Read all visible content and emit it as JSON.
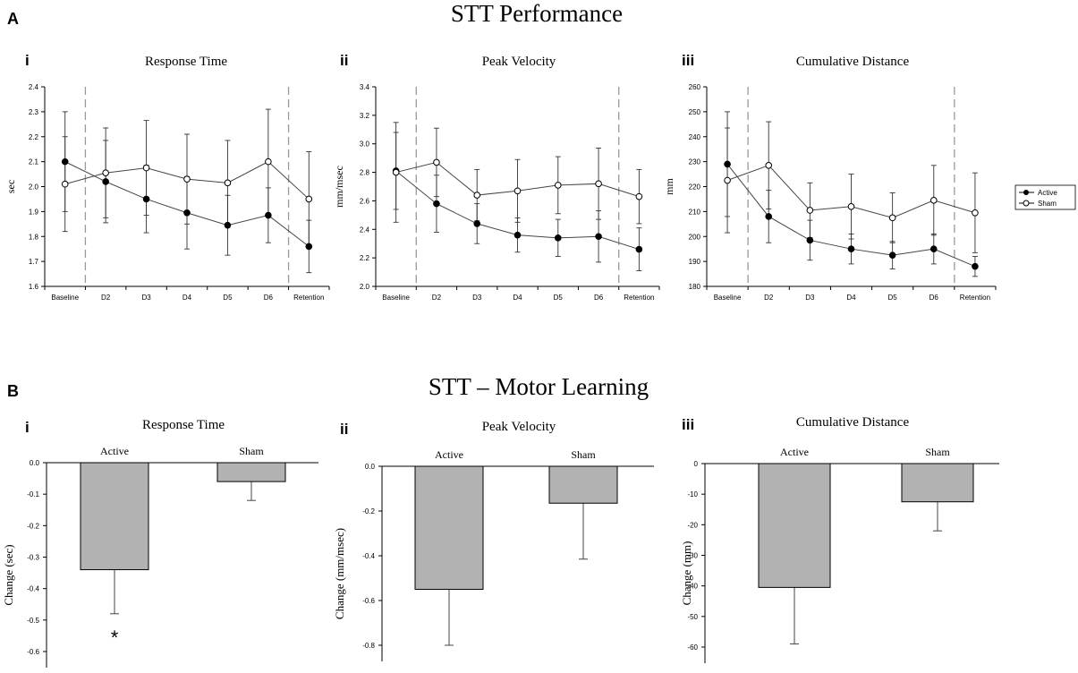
{
  "figure": {
    "title_a": "STT Performance",
    "title_b": "STT – Motor Learning",
    "label_a": "A",
    "label_b": "B",
    "legend": [
      "Active",
      "Sham"
    ],
    "significance_marker": "*"
  },
  "chart_data": [
    {
      "type": "line",
      "panel": "i",
      "title": "Response Time",
      "ylabel": "sec",
      "categories": [
        "Baseline",
        "D2",
        "D3",
        "D4",
        "D5",
        "D6",
        "Retention"
      ],
      "ylim": [
        1.6,
        2.4
      ],
      "yticks": [
        "1.6",
        "1.7",
        "1.8",
        "1.9",
        "2.0",
        "2.1",
        "2.2",
        "2.3",
        "2.4"
      ],
      "series": [
        {
          "name": "Active",
          "values": [
            2.1,
            2.02,
            1.95,
            1.895,
            1.845,
            1.885,
            1.76
          ],
          "err": [
            0.2,
            0.165,
            0.135,
            0.145,
            0.12,
            0.11,
            0.105
          ]
        },
        {
          "name": "Sham",
          "values": [
            2.01,
            2.055,
            2.075,
            2.03,
            2.015,
            2.1,
            1.95
          ],
          "err": [
            0.19,
            0.18,
            0.19,
            0.18,
            0.17,
            0.21,
            0.19
          ]
        }
      ]
    },
    {
      "type": "line",
      "panel": "ii",
      "title": "Peak Velocity",
      "ylabel": "mm/msec",
      "categories": [
        "Baseline",
        "D2",
        "D3",
        "D4",
        "D5",
        "D6",
        "Retention"
      ],
      "ylim": [
        2.0,
        3.4
      ],
      "yticks": [
        "2.0",
        "2.2",
        "2.4",
        "2.6",
        "2.8",
        "3.0",
        "3.2",
        "3.4"
      ],
      "series": [
        {
          "name": "Active",
          "values": [
            2.81,
            2.58,
            2.44,
            2.36,
            2.34,
            2.35,
            2.26
          ],
          "err": [
            0.27,
            0.2,
            0.14,
            0.12,
            0.13,
            0.18,
            0.15
          ]
        },
        {
          "name": "Sham",
          "values": [
            2.8,
            2.87,
            2.64,
            2.67,
            2.71,
            2.72,
            2.63
          ],
          "err": [
            0.35,
            0.24,
            0.18,
            0.22,
            0.2,
            0.25,
            0.19
          ]
        }
      ]
    },
    {
      "type": "line",
      "panel": "iii",
      "title": "Cumulative Distance",
      "ylabel": "mm",
      "categories": [
        "Baseline",
        "D2",
        "D3",
        "D4",
        "D5",
        "D6",
        "Retention"
      ],
      "ylim": [
        180,
        260
      ],
      "yticks": [
        "180",
        "190",
        "200",
        "210",
        "220",
        "230",
        "240",
        "250",
        "260"
      ],
      "series": [
        {
          "name": "Active",
          "values": [
            229,
            208,
            198.5,
            195,
            192.5,
            195,
            188
          ],
          "err": [
            21,
            10.5,
            8,
            6,
            5.5,
            6,
            4
          ]
        },
        {
          "name": "Sham",
          "values": [
            222.5,
            228.5,
            210.5,
            212,
            207.5,
            214.5,
            209.5
          ],
          "err": [
            21,
            17.5,
            11,
            13,
            10,
            14,
            16
          ]
        }
      ]
    },
    {
      "type": "bar",
      "panel": "i",
      "title": "Response Time",
      "ylabel": "Change (sec)",
      "categories": [
        "Active",
        "Sham"
      ],
      "values": [
        -0.34,
        -0.06
      ],
      "err": [
        0.14,
        0.06
      ],
      "ylim": [
        -0.6,
        0.0
      ],
      "yticks": [
        "0.0",
        "-0.1",
        "-0.2",
        "-0.3",
        "-0.4",
        "-0.5",
        "-0.6"
      ]
    },
    {
      "type": "bar",
      "panel": "ii",
      "title": "Peak Velocity",
      "ylabel": "Change (mm/msec)",
      "categories": [
        "Active",
        "Sham"
      ],
      "values": [
        -0.55,
        -0.165
      ],
      "err": [
        0.25,
        0.25
      ],
      "ylim": [
        -0.8,
        0.0
      ],
      "yticks": [
        "0.0",
        "-0.2",
        "-0.4",
        "-0.6",
        "-0.8"
      ]
    },
    {
      "type": "bar",
      "panel": "iii",
      "title": "Cumulative Distance",
      "ylabel": "Change (mm)",
      "categories": [
        "Active",
        "Sham"
      ],
      "values": [
        -40.5,
        -12.5
      ],
      "err": [
        18.5,
        9.5
      ],
      "ylim": [
        -60,
        0
      ],
      "yticks": [
        "0",
        "-10",
        "-20",
        "-30",
        "-40",
        "-50",
        "-60"
      ]
    }
  ]
}
